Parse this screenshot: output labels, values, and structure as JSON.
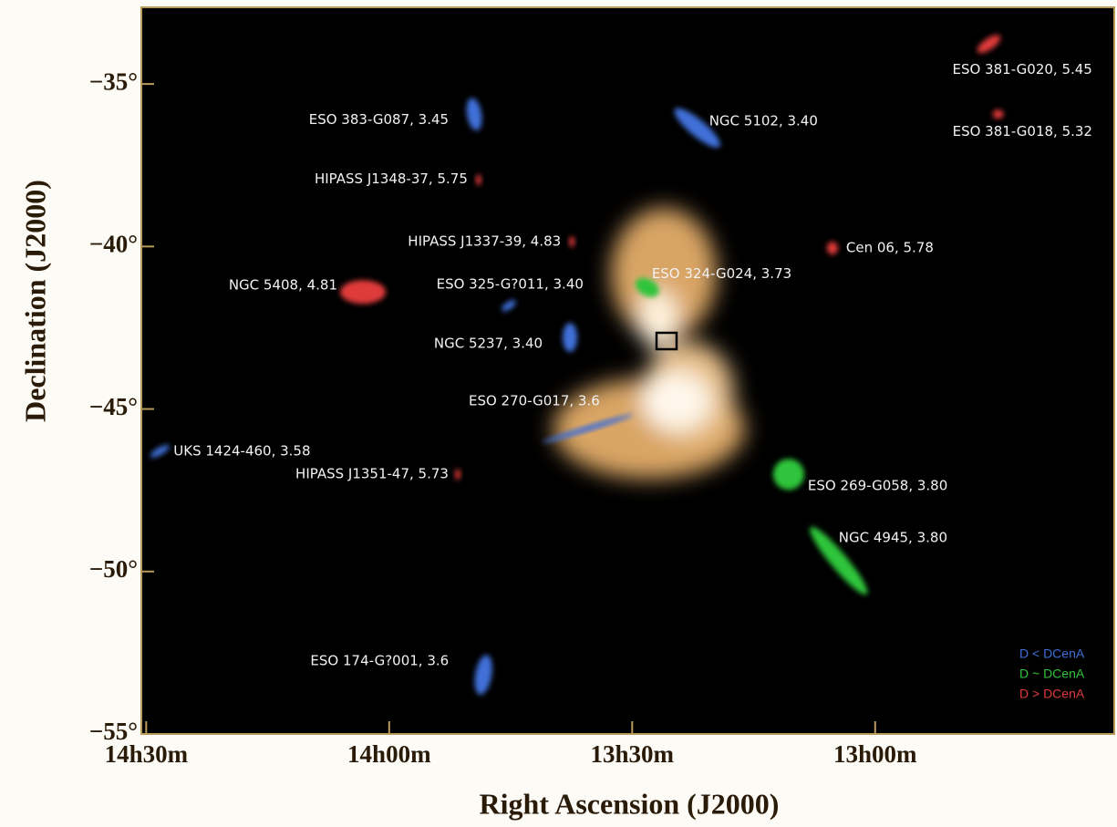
{
  "chart_data": {
    "type": "scatter",
    "x_label": "Right Ascension (J2000)",
    "y_label": "Declination (J2000)",
    "xlim": [
      14.51,
      12.508
    ],
    "ylim": [
      -55,
      -32.64
    ],
    "xticks": [
      {
        "value": 14.5,
        "label": "14h30m"
      },
      {
        "value": 14.0,
        "label": "14h00m"
      },
      {
        "value": 13.5,
        "label": "13h30m"
      },
      {
        "value": 13.0,
        "label": "13h00m"
      }
    ],
    "yticks": [
      {
        "value": -35,
        "label": "−35°"
      },
      {
        "value": -40,
        "label": "−40°"
      },
      {
        "value": -45,
        "label": "−45°"
      },
      {
        "value": -50,
        "label": "−50°"
      },
      {
        "value": -55,
        "label": "−55°"
      }
    ],
    "series": [
      {
        "name": "D < DCenA",
        "color": "#3f6fd8",
        "labels": [
          "ESO 383-G087, 3.45",
          "NGC 5102, 3.40",
          "ESO 325-G?011, 3.40",
          "NGC 5237, 3.40",
          "ESO 270-G017, 3.6",
          "UKS 1424-460, 3.58",
          "ESO 174-G?001, 3.6"
        ],
        "x": [
          13.825,
          13.366,
          13.754,
          13.628,
          13.591,
          14.472,
          13.806
        ],
        "y": [
          -35.93,
          -36.35,
          -41.82,
          -42.8,
          -45.6,
          -46.3,
          -53.18
        ]
      },
      {
        "name": "D ~ DCenA",
        "color": "#2fc43a",
        "labels": [
          "ESO 324-G024, 3.73",
          "ESO 269-G058, 3.80",
          "NGC 4945, 3.80"
        ],
        "x": [
          13.469,
          13.178,
          13.075
        ],
        "y": [
          -41.26,
          -47.01,
          -49.67
        ]
      },
      {
        "name": "D > DCenA",
        "color": "#e03a3a",
        "labels": [
          "ESO 381-G020, 5.45",
          "ESO 381-G018, 5.32",
          "HIPASS J1348-37, 5.75",
          "HIPASS J1337-39, 4.83",
          "Cen 06, 5.78",
          "NGC 5408, 4.81",
          "HIPASS J1351-47, 5.73"
        ],
        "x": [
          12.766,
          12.747,
          13.816,
          13.624,
          13.088,
          14.054,
          13.859
        ],
        "y": [
          -33.77,
          -35.93,
          -37.95,
          -39.85,
          -40.05,
          -41.4,
          -47.01
        ]
      }
    ]
  }
}
